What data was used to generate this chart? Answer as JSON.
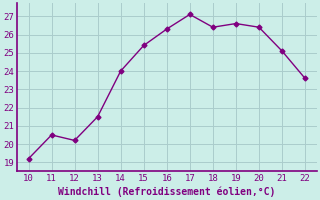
{
  "x": [
    10,
    11,
    12,
    13,
    14,
    15,
    16,
    17,
    18,
    19,
    20,
    21,
    22
  ],
  "y": [
    19.2,
    20.5,
    20.2,
    21.5,
    24.0,
    25.4,
    26.3,
    27.1,
    26.4,
    26.6,
    26.4,
    25.1,
    23.6
  ],
  "line_color": "#800080",
  "marker": "D",
  "marker_size": 2.5,
  "bg_color": "#cceee8",
  "grid_color": "#aacccc",
  "xlabel": "Windchill (Refroidissement éolien,°C)",
  "xlabel_color": "#800080",
  "tick_color": "#800080",
  "spine_color": "#800080",
  "xlim": [
    9.5,
    22.5
  ],
  "ylim": [
    18.5,
    27.7
  ],
  "xticks": [
    10,
    11,
    12,
    13,
    14,
    15,
    16,
    17,
    18,
    19,
    20,
    21,
    22
  ],
  "yticks": [
    19,
    20,
    21,
    22,
    23,
    24,
    25,
    26,
    27
  ],
  "title": ""
}
